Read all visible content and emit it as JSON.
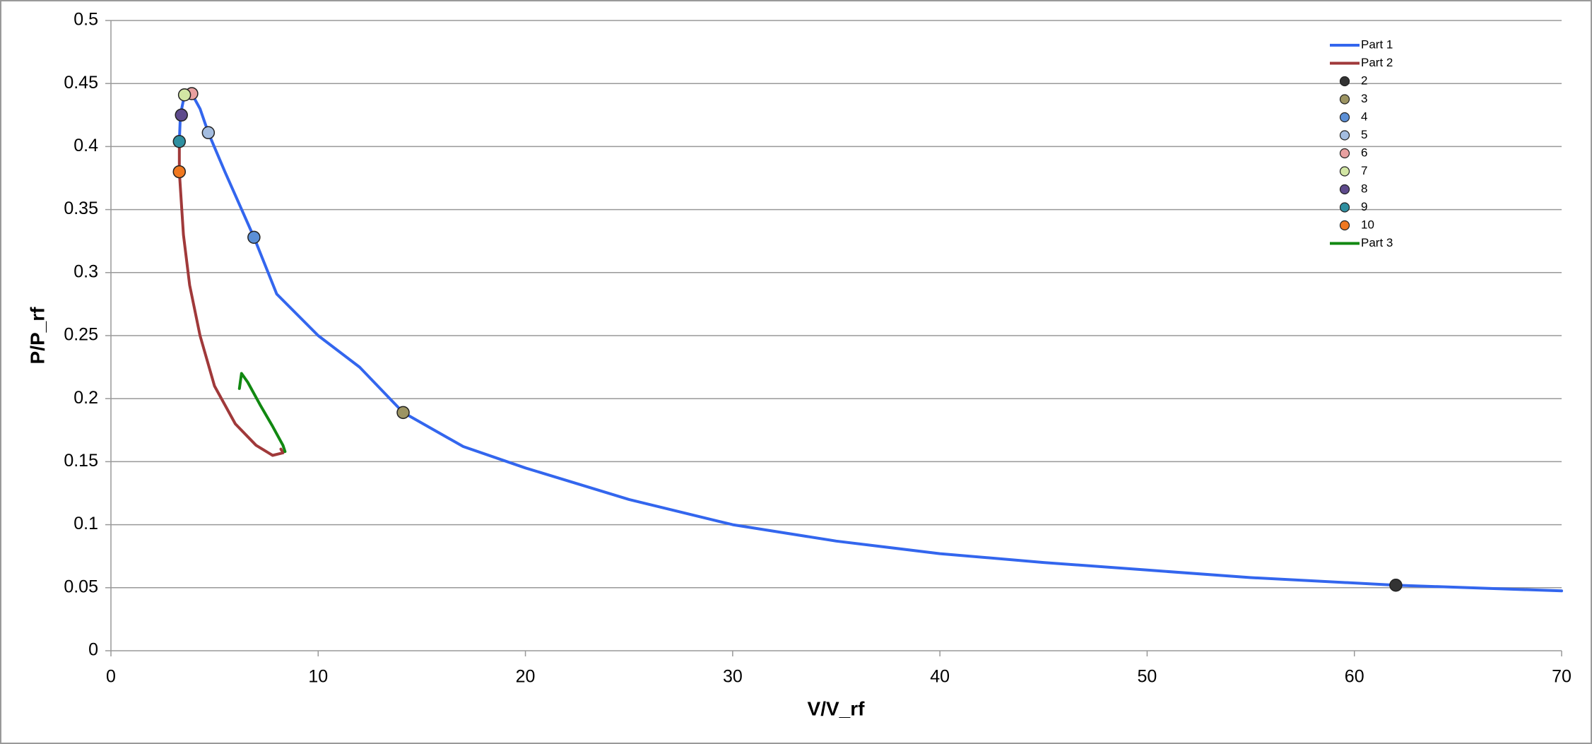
{
  "chart_data": {
    "type": "scatter",
    "x_label": "V/V_rf",
    "y_label": "P/P_rf",
    "xlim": [
      0,
      70
    ],
    "xticks": [
      0,
      10,
      20,
      30,
      40,
      50,
      60,
      70
    ],
    "ylim": [
      0,
      0.5
    ],
    "yticks": [
      0,
      0.05,
      0.1,
      0.15,
      0.2,
      0.25,
      0.3,
      0.35,
      0.4,
      0.45,
      0.5
    ],
    "grid": true,
    "legend": "top right",
    "series": [
      {
        "name": "Part 1",
        "style": "line",
        "color": "#3366ee",
        "x": [
          3.3,
          3.35,
          3.55,
          3.9,
          4.3,
          4.7,
          5.5,
          6.9,
          8,
          10,
          12,
          14.1,
          17,
          20,
          25,
          30,
          35,
          40,
          45,
          50,
          55,
          62,
          70
        ],
        "values": [
          0.404,
          0.425,
          0.441,
          0.442,
          0.43,
          0.411,
          0.38,
          0.328,
          0.283,
          0.25,
          0.225,
          0.189,
          0.162,
          0.145,
          0.12,
          0.1,
          0.087,
          0.077,
          0.07,
          0.064,
          0.058,
          0.052,
          0.0475
        ]
      },
      {
        "name": "Part 2",
        "style": "line",
        "color": "#a0393a",
        "x": [
          3.3,
          3.3,
          3.5,
          3.8,
          4.3,
          5,
          6,
          7,
          7.8,
          8.3,
          8.2
        ],
        "values": [
          0.4,
          0.38,
          0.33,
          0.29,
          0.25,
          0.21,
          0.18,
          0.163,
          0.155,
          0.157,
          0.16
        ]
      },
      {
        "name": "2",
        "style": "marker",
        "color": "#333333",
        "x": [
          62
        ],
        "values": [
          0.052
        ]
      },
      {
        "name": "3",
        "style": "marker",
        "color": "#9c9462",
        "x": [
          14.1
        ],
        "values": [
          0.189
        ]
      },
      {
        "name": "4",
        "style": "marker",
        "color": "#5b8fd6",
        "x": [
          6.9
        ],
        "values": [
          0.328
        ]
      },
      {
        "name": "5",
        "style": "marker",
        "color": "#a4bde0",
        "x": [
          4.7
        ],
        "values": [
          0.411
        ]
      },
      {
        "name": "6",
        "style": "marker",
        "color": "#e8a0a0",
        "x": [
          3.9
        ],
        "values": [
          0.442
        ]
      },
      {
        "name": "7",
        "style": "marker",
        "color": "#d2e6a4",
        "x": [
          3.55
        ],
        "values": [
          0.441
        ]
      },
      {
        "name": "8",
        "style": "marker",
        "color": "#5e4a8c",
        "x": [
          3.4
        ],
        "values": [
          0.425
        ]
      },
      {
        "name": "9",
        "style": "marker",
        "color": "#2f8fa0",
        "x": [
          3.3
        ],
        "values": [
          0.404
        ]
      },
      {
        "name": "10",
        "style": "marker",
        "color": "#f07820",
        "x": [
          3.3
        ],
        "values": [
          0.38
        ]
      },
      {
        "name": "Part 3",
        "style": "line",
        "color": "#118811",
        "x": [
          6.2,
          6.3,
          6.6,
          7.2,
          7.8,
          8.3,
          8.4
        ],
        "values": [
          0.208,
          0.22,
          0.213,
          0.195,
          0.178,
          0.163,
          0.158
        ]
      }
    ]
  }
}
